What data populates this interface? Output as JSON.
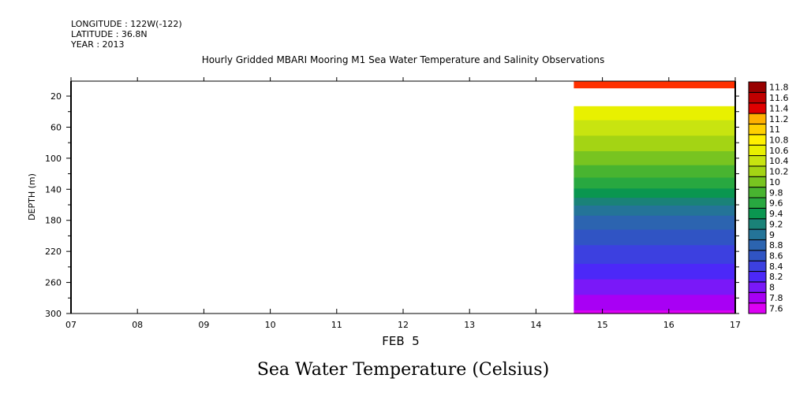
{
  "header": {
    "longitude": "LONGITUDE : 122W(-122)",
    "latitude": "LATITUDE : 36.8N",
    "year": "YEAR : 2013"
  },
  "chart_data": {
    "type": "heatmap",
    "title": "Hourly Gridded MBARI Mooring M1 Sea Water Temperature and Salinity Observations",
    "xlabel": "FEB  5",
    "ylabel": "DEPTH (m)",
    "caption": "Sea Water Temperature (Celsius)",
    "xlim": [
      7,
      17
    ],
    "ylim": [
      300,
      1
    ],
    "x_ticks": [
      "07",
      "08",
      "09",
      "10",
      "11",
      "12",
      "13",
      "14",
      "15",
      "16",
      "17"
    ],
    "y_ticks": [
      20,
      60,
      100,
      140,
      180,
      220,
      260,
      300
    ],
    "data_start_hour": 14.57,
    "layers": [
      {
        "depth_top": 1,
        "depth_bottom": 10,
        "temperature": 11.8
      }
    ],
    "profile": [
      {
        "depth": 33,
        "temperature": 10.65
      },
      {
        "depth": 45,
        "temperature": 10.55
      },
      {
        "depth": 60,
        "temperature": 10.4
      },
      {
        "depth": 75,
        "temperature": 10.25
      },
      {
        "depth": 100,
        "temperature": 10.0
      },
      {
        "depth": 125,
        "temperature": 9.7
      },
      {
        "depth": 145,
        "temperature": 9.4
      },
      {
        "depth": 165,
        "temperature": 9.0
      },
      {
        "depth": 200,
        "temperature": 8.6
      },
      {
        "depth": 235,
        "temperature": 8.3
      },
      {
        "depth": 255,
        "temperature": 8.1
      },
      {
        "depth": 275,
        "temperature": 7.9
      },
      {
        "depth": 300,
        "temperature": 7.65
      }
    ],
    "colorbar": {
      "levels": [
        "7.6",
        "7.8",
        "8",
        "8.2",
        "8.4",
        "8.6",
        "8.8",
        "9",
        "9.2",
        "9.4",
        "9.6",
        "9.8",
        "10",
        "10.2",
        "10.4",
        "10.6",
        "10.8",
        "11",
        "11.2",
        "11.4",
        "11.6",
        "11.8"
      ],
      "colors": [
        "#dc00f4",
        "#a800f4",
        "#7a18f8",
        "#4c28f8",
        "#3c40e0",
        "#3054c4",
        "#2c64b0",
        "#247498",
        "#1a8278",
        "#0a9650",
        "#28a840",
        "#48b430",
        "#78c420",
        "#a4d414",
        "#c8e410",
        "#e8f000",
        "#fff000",
        "#ffd000",
        "#ffb000",
        "#ff9000",
        "#ff6000",
        "#ff3000",
        "#ff1010",
        "#d80000",
        "#b00000",
        "#980000"
      ]
    }
  }
}
